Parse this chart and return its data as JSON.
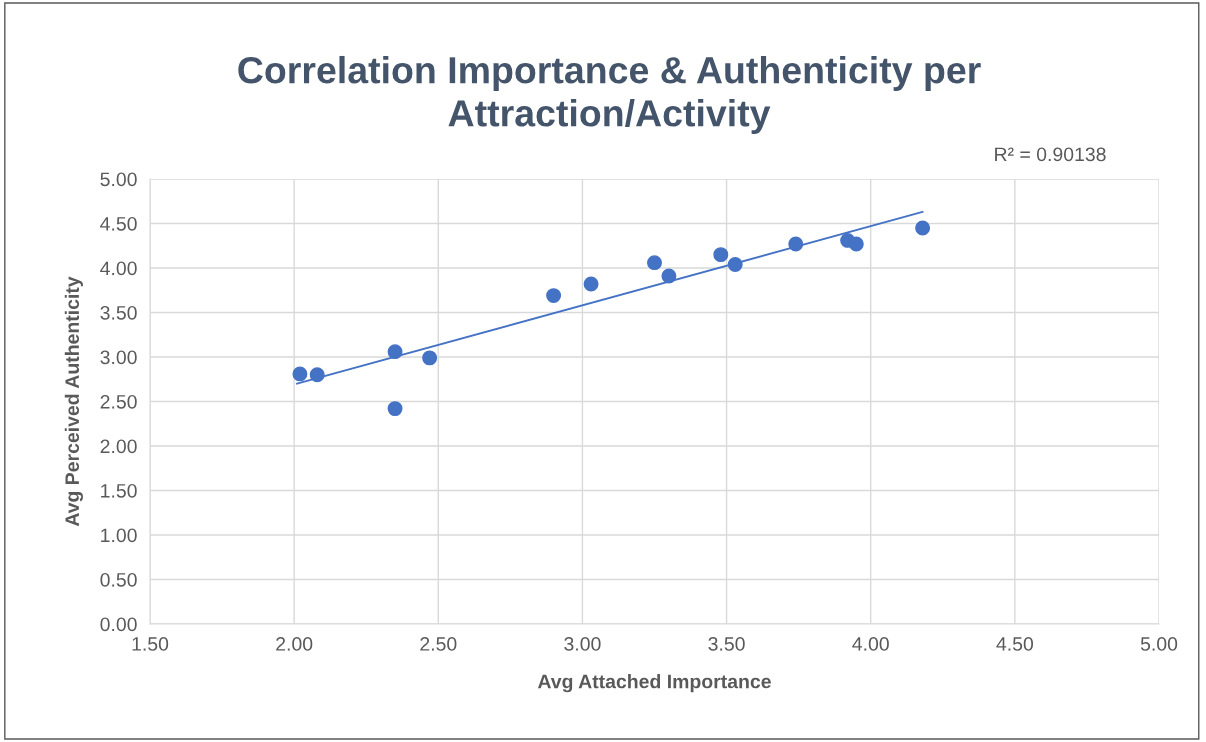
{
  "chart_data": {
    "type": "scatter",
    "title": "Correlation Importance & Authenticity per\nAttraction/Activity",
    "xlabel": "Avg Attached Importance",
    "ylabel": "Avg Perceived Authenticity",
    "annotations": [
      "R² = 0.90138"
    ],
    "series": [
      {
        "color": "#4472c4",
        "marker": "circle",
        "x": [
          2.02,
          2.08,
          2.35,
          2.35,
          2.47,
          2.9,
          3.03,
          3.25,
          3.3,
          3.48,
          3.53,
          3.74,
          3.92,
          3.95,
          4.18
        ],
        "values": [
          2.81,
          2.8,
          3.06,
          2.42,
          2.99,
          3.69,
          3.82,
          4.06,
          3.91,
          4.15,
          4.04,
          4.27,
          4.31,
          4.27,
          4.45
        ]
      },
      {
        "type": "line",
        "color": "#4472c4",
        "marker": "none",
        "x": [
          2.01,
          4.18
        ],
        "values": [
          2.7,
          4.63
        ]
      }
    ],
    "xlim": [
      1.5,
      5.0
    ],
    "xticks": [
      {
        "value": 1.5,
        "label": "1.50"
      },
      {
        "value": 2.0,
        "label": "2.00"
      },
      {
        "value": 2.5,
        "label": "2.50"
      },
      {
        "value": 3.0,
        "label": "3.00"
      },
      {
        "value": 3.5,
        "label": "3.50"
      },
      {
        "value": 4.0,
        "label": "4.00"
      },
      {
        "value": 4.5,
        "label": "4.50"
      },
      {
        "value": 5.0,
        "label": "5.00"
      }
    ],
    "ylim": [
      0,
      5.0
    ],
    "yticks": [
      {
        "value": 0,
        "label": "0.00"
      },
      {
        "value": 0.5,
        "label": "0.50"
      },
      {
        "value": 1.0,
        "label": "1.00"
      },
      {
        "value": 1.5,
        "label": "1.50"
      },
      {
        "value": 2.0,
        "label": "2.00"
      },
      {
        "value": 2.5,
        "label": "2.50"
      },
      {
        "value": 3.0,
        "label": "3.00"
      },
      {
        "value": 3.5,
        "label": "3.50"
      },
      {
        "value": 4.0,
        "label": "4.00"
      },
      {
        "value": 4.5,
        "label": "4.50"
      },
      {
        "value": 5.0,
        "label": "5.00"
      }
    ],
    "grid": true,
    "legend": false
  }
}
